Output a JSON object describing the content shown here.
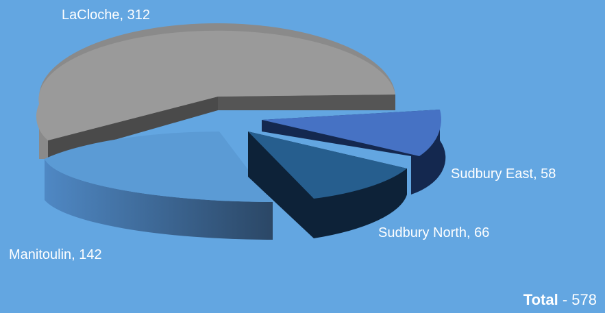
{
  "chart_data": {
    "type": "pie",
    "style": "3d-exploded",
    "categories": [
      "LaCloche",
      "Sudbury East",
      "Sudbury North",
      "Manitoulin"
    ],
    "values": [
      312,
      58,
      66,
      142
    ],
    "labels": [
      "LaCloche, 312",
      "Sudbury East, 58",
      "Sudbury North, 66",
      "Manitoulin, 142"
    ],
    "colors": [
      "#9a9a9a",
      "#4672c4",
      "#265e8e",
      "#5b9bd5"
    ],
    "background": "#63a6e1",
    "legend": "none"
  },
  "total": {
    "label": "Total",
    "separator": " - ",
    "value": "578"
  }
}
